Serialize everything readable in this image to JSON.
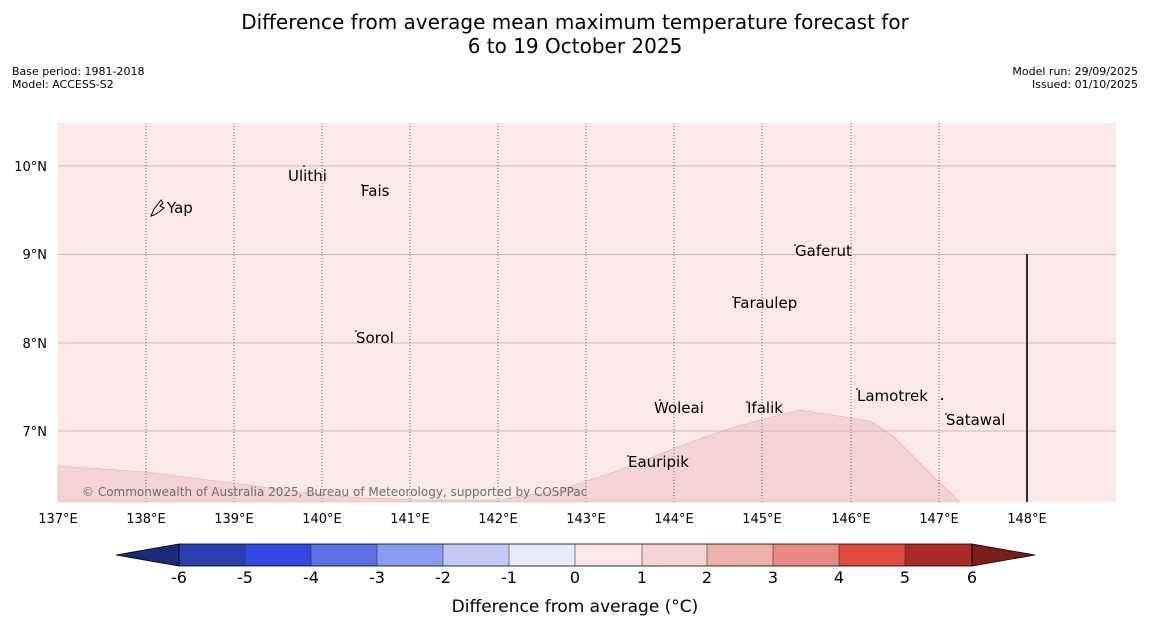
{
  "title_line1": "Difference from average mean maximum temperature forecast for",
  "title_line2": "6 to 19 October 2025",
  "base_period": "Base period: 1981-2018",
  "model": "Model: ACCESS-S2",
  "model_run": "Model run: 29/09/2025",
  "issued": "Issued: 01/10/2025",
  "copyright": "© Commonwealth of Australia 2025, Bureau of Meteorology, supported by COSPPac",
  "lon_labels": [
    "137°E",
    "138°E",
    "139°E",
    "140°E",
    "141°E",
    "142°E",
    "143°E",
    "144°E",
    "145°E",
    "146°E",
    "147°E",
    "148°E"
  ],
  "lat_labels": [
    "10°N",
    "9°N",
    "8°N",
    "7°N"
  ],
  "places": {
    "yap": "Yap",
    "ulithi": "Ulithi",
    "fais": "Fais",
    "gaferut": "Gaferut",
    "faraulep": "Faraulep",
    "sorol": "Sorol",
    "woleai": "Woleai",
    "ifalik": "Ifalik",
    "lamotrek": "Lamotrek",
    "satawal": "Satawal",
    "eauripik": "Eauripik"
  },
  "colorbar": {
    "title": "Difference from average (°C)",
    "ticks": [
      "-6",
      "-5",
      "-4",
      "-3",
      "-2",
      "-1",
      "0",
      "1",
      "2",
      "3",
      "4",
      "5",
      "6"
    ],
    "colors": {
      "under": "#1c2a7a",
      "c1": "#2a3fb0",
      "c2": "#3149e0",
      "c3": "#5a72e6",
      "c4": "#8a9bef",
      "c5": "#c3caf6",
      "c6": "#e9ebfb",
      "c7": "#fbe9e9",
      "c8": "#f5d3d3",
      "c9": "#efb0ab",
      "c10": "#e98981",
      "c11": "#de4a40",
      "c12": "#aa2a25",
      "over": "#7a1d1b"
    }
  },
  "map_colors": {
    "background": "#fbe9e9",
    "warmer_region": "#f5d3d3"
  }
}
